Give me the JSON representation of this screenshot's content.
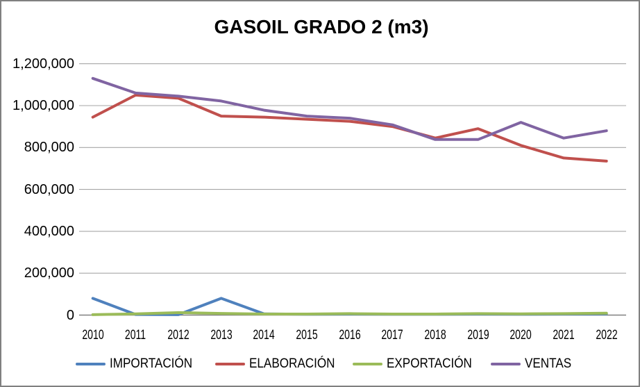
{
  "chart_data": {
    "type": "line",
    "title": "GASOIL GRADO 2 (m3)",
    "categories": [
      "2010",
      "2011",
      "2012",
      "2013",
      "2014",
      "2015",
      "2016",
      "2017",
      "2018",
      "2019",
      "2020",
      "2021",
      "2022"
    ],
    "series": [
      {
        "name": "IMPORTACIÓN",
        "color": "#4F81BD",
        "values": [
          80000,
          3000,
          2000,
          80000,
          6000,
          4000,
          5000,
          4000,
          4000,
          5000,
          4000,
          5000,
          6000
        ]
      },
      {
        "name": "ELABORACIÓN",
        "color": "#C0504D",
        "values": [
          945000,
          1050000,
          1035000,
          950000,
          945000,
          935000,
          925000,
          900000,
          845000,
          890000,
          810000,
          750000,
          735000
        ]
      },
      {
        "name": "EXPORTACIÓN",
        "color": "#9BBB59",
        "values": [
          2000,
          6000,
          12000,
          8000,
          5000,
          5000,
          7000,
          5000,
          5000,
          7000,
          6000,
          7000,
          9000
        ]
      },
      {
        "name": "VENTAS",
        "color": "#8064A2",
        "values": [
          1130000,
          1060000,
          1045000,
          1022000,
          978000,
          950000,
          940000,
          908000,
          838000,
          838000,
          920000,
          845000,
          880000
        ]
      }
    ],
    "xlabel": "",
    "ylabel": "",
    "ylim": [
      0,
      1200000
    ],
    "ytick_step": 200000,
    "ytick_labels": [
      "0",
      "200,000",
      "400,000",
      "600,000",
      "800,000",
      "1,000,000",
      "1,200,000"
    ],
    "grid": true,
    "legend_position": "bottom",
    "colors": {
      "gridline": "#A6A6A6",
      "axis_line": "#808080",
      "text": "#000000",
      "frame_border": "#808080",
      "background": "#FFFFFF"
    }
  }
}
